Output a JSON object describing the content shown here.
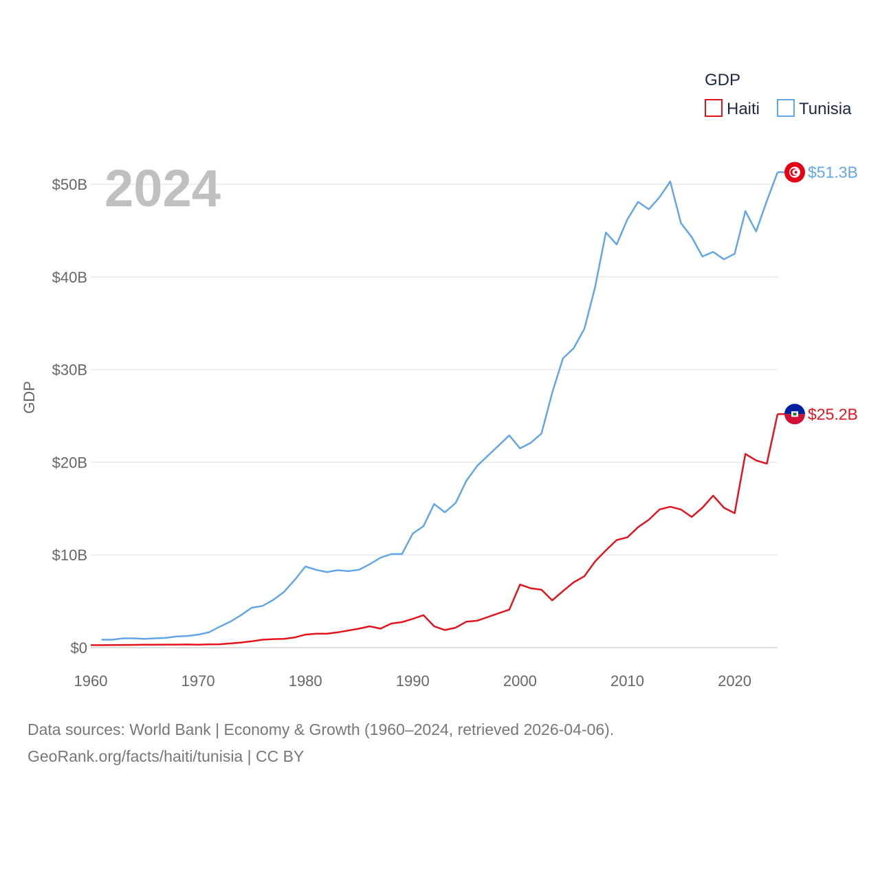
{
  "chart_data": {
    "type": "line",
    "year_label": "2024",
    "ylabel": "GDP",
    "xlabel": "",
    "xlim": [
      1960,
      2024
    ],
    "ylim": [
      0,
      50
    ],
    "x_ticks": [
      1960,
      1970,
      1980,
      1990,
      2000,
      2010,
      2020
    ],
    "x_tick_labels": [
      "1960",
      "1970",
      "1980",
      "1990",
      "2000",
      "2010",
      "2020"
    ],
    "y_ticks": [
      0,
      10,
      20,
      30,
      40,
      50
    ],
    "y_tick_labels": [
      "$0",
      "$10B",
      "$20B",
      "$30B",
      "$40B",
      "$50B"
    ],
    "legend": {
      "title": "GDP",
      "position": "top-right"
    },
    "series": [
      {
        "name": "Haiti",
        "color": "#e3131e",
        "end_label": "$25.2B",
        "flag": "haiti-flag",
        "x": [
          1960,
          1961,
          1962,
          1963,
          1964,
          1965,
          1966,
          1967,
          1968,
          1969,
          1970,
          1971,
          1972,
          1973,
          1974,
          1975,
          1976,
          1977,
          1978,
          1979,
          1980,
          1981,
          1982,
          1983,
          1984,
          1985,
          1986,
          1987,
          1988,
          1989,
          1990,
          1991,
          1992,
          1993,
          1994,
          1995,
          1996,
          1997,
          1998,
          1999,
          2000,
          2001,
          2002,
          2003,
          2004,
          2005,
          2006,
          2007,
          2008,
          2009,
          2010,
          2011,
          2012,
          2013,
          2014,
          2015,
          2016,
          2017,
          2018,
          2019,
          2020,
          2021,
          2022,
          2023,
          2024
        ],
        "values": [
          0.27,
          0.27,
          0.28,
          0.29,
          0.3,
          0.31,
          0.32,
          0.33,
          0.33,
          0.34,
          0.31,
          0.35,
          0.36,
          0.45,
          0.55,
          0.68,
          0.85,
          0.92,
          0.95,
          1.1,
          1.4,
          1.5,
          1.5,
          1.65,
          1.85,
          2.05,
          2.3,
          2.05,
          2.6,
          2.75,
          3.1,
          3.5,
          2.3,
          1.9,
          2.15,
          2.8,
          2.9,
          3.3,
          3.7,
          4.1,
          6.8,
          6.4,
          6.25,
          5.1,
          6.1,
          7.05,
          7.7,
          9.3,
          10.5,
          11.6,
          11.9,
          13.0,
          13.8,
          14.9,
          15.2,
          14.9,
          14.1,
          15.1,
          16.4,
          15.1,
          14.5,
          20.9,
          20.2,
          19.85,
          25.2
        ]
      },
      {
        "name": "Tunisia",
        "color": "#62a6e5",
        "end_label": "$51.3B",
        "flag": "tunisia-flag",
        "x": [
          1961,
          1962,
          1963,
          1964,
          1965,
          1966,
          1967,
          1968,
          1969,
          1970,
          1971,
          1972,
          1973,
          1974,
          1975,
          1976,
          1977,
          1978,
          1979,
          1980,
          1981,
          1982,
          1983,
          1984,
          1985,
          1986,
          1987,
          1988,
          1989,
          1990,
          1991,
          1992,
          1993,
          1994,
          1995,
          1996,
          1997,
          1998,
          1999,
          2000,
          2001,
          2002,
          2003,
          2004,
          2005,
          2006,
          2007,
          2008,
          2009,
          2010,
          2011,
          2012,
          2013,
          2014,
          2015,
          2016,
          2017,
          2018,
          2019,
          2020,
          2021,
          2022,
          2023,
          2024
        ],
        "values": [
          0.85,
          0.85,
          1.0,
          1.0,
          0.95,
          1.0,
          1.05,
          1.2,
          1.25,
          1.4,
          1.65,
          2.25,
          2.8,
          3.5,
          4.3,
          4.5,
          5.15,
          6.0,
          7.3,
          8.75,
          8.4,
          8.15,
          8.35,
          8.25,
          8.4,
          9.0,
          9.7,
          10.1,
          10.1,
          12.3,
          13.1,
          15.5,
          14.6,
          15.6,
          18.0,
          19.6,
          20.7,
          21.8,
          22.9,
          21.5,
          22.1,
          23.1,
          27.5,
          31.2,
          32.3,
          34.4,
          38.9,
          44.8,
          43.5,
          46.2,
          48.1,
          47.3,
          48.6,
          50.3,
          45.8,
          44.3,
          42.2,
          42.7,
          41.9,
          42.5,
          47.1,
          44.9,
          48.2,
          51.3
        ]
      }
    ]
  },
  "footer": {
    "line1": "Data sources: World Bank | Economy & Growth (1960–2024, retrieved 2026-04-06).",
    "line2": "GeoRank.org/facts/haiti/tunisia | CC BY"
  }
}
